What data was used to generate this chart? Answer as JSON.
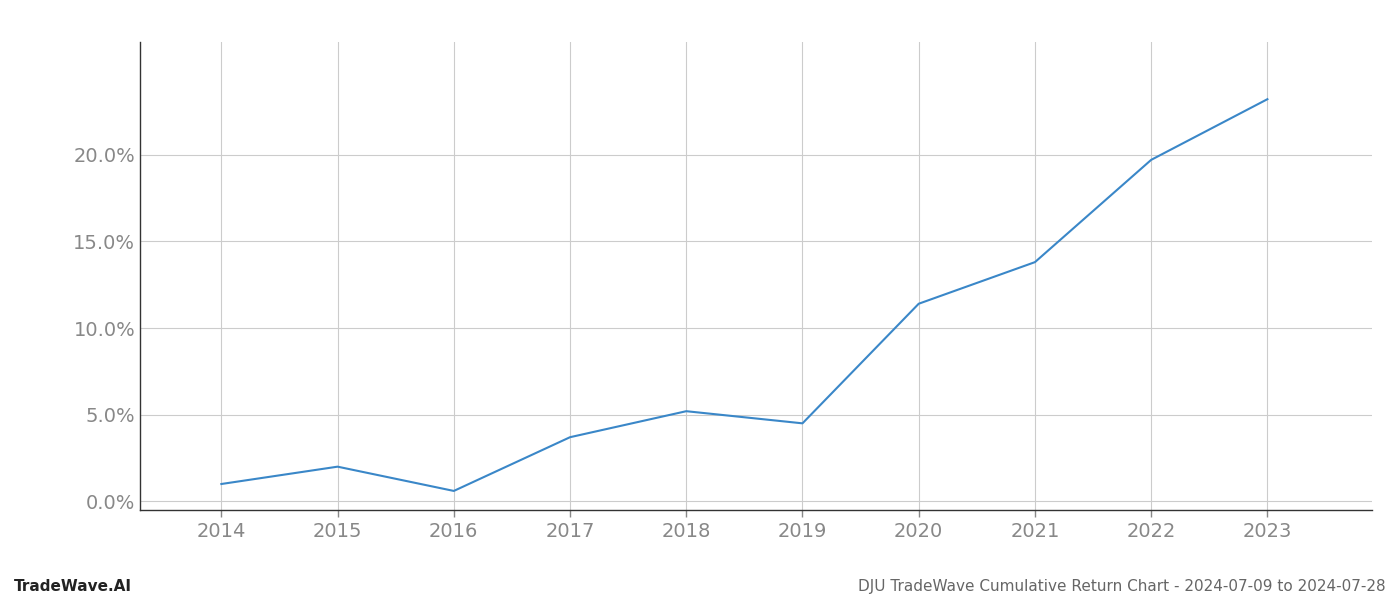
{
  "x_years": [
    2014,
    2015,
    2016,
    2017,
    2018,
    2019,
    2020,
    2021,
    2022,
    2023
  ],
  "y_values": [
    0.01,
    0.02,
    0.006,
    0.037,
    0.052,
    0.045,
    0.114,
    0.138,
    0.197,
    0.232
  ],
  "line_color": "#3a87c8",
  "line_width": 1.5,
  "background_color": "#ffffff",
  "grid_color": "#cccccc",
  "ylabel_ticks": [
    0.0,
    0.05,
    0.1,
    0.15,
    0.2
  ],
  "xtick_labels": [
    "2014",
    "2015",
    "2016",
    "2017",
    "2018",
    "2019",
    "2020",
    "2021",
    "2022",
    "2023"
  ],
  "footer_left": "TradeWave.AI",
  "footer_right": "DJU TradeWave Cumulative Return Chart - 2024-07-09 to 2024-07-28",
  "axis_color": "#888888",
  "tick_color": "#888888",
  "footer_fontsize": 11,
  "tick_fontsize": 14,
  "ylim_min": -0.005,
  "ylim_max": 0.265,
  "xlim_min": 2013.3,
  "xlim_max": 2023.9
}
